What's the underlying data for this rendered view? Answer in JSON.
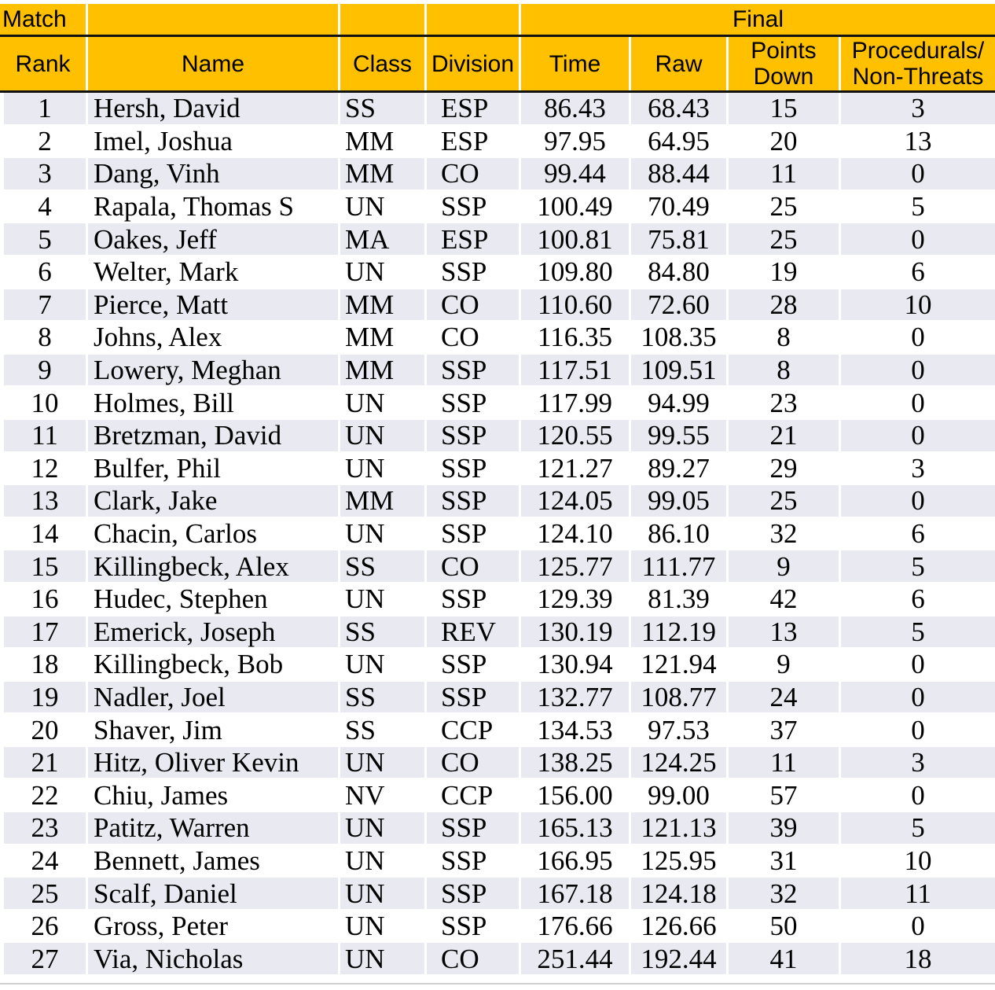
{
  "colors": {
    "header_bg": "#FFC000",
    "row_stripe": "#E9EAF1",
    "rule": "#111111"
  },
  "header": {
    "match_label": "Match",
    "final_label": "Final",
    "columns": {
      "rank": "Rank",
      "name": "Name",
      "class": "Class",
      "division": "Division",
      "time": "Time",
      "raw": "Raw",
      "points_down_line1": "Points",
      "points_down_line2": "Down",
      "procedurals_line1": "Procedurals/",
      "procedurals_line2": "Non-Threats"
    }
  },
  "column_keys": [
    "rank",
    "name",
    "class",
    "division",
    "time",
    "raw",
    "points-down",
    "procedurals-non-threats"
  ],
  "rows": [
    [
      "1",
      "Hersh, David",
      "SS",
      "ESP",
      "86.43",
      "68.43",
      "15",
      "3"
    ],
    [
      "2",
      "Imel, Joshua",
      "MM",
      "ESP",
      "97.95",
      "64.95",
      "20",
      "13"
    ],
    [
      "3",
      "Dang, Vinh",
      "MM",
      "CO",
      "99.44",
      "88.44",
      "11",
      "0"
    ],
    [
      "4",
      "Rapala, Thomas S",
      "UN",
      "SSP",
      "100.49",
      "70.49",
      "25",
      "5"
    ],
    [
      "5",
      "Oakes, Jeff",
      "MA",
      "ESP",
      "100.81",
      "75.81",
      "25",
      "0"
    ],
    [
      "6",
      "Welter, Mark",
      "UN",
      "SSP",
      "109.80",
      "84.80",
      "19",
      "6"
    ],
    [
      "7",
      "Pierce, Matt",
      "MM",
      "CO",
      "110.60",
      "72.60",
      "28",
      "10"
    ],
    [
      "8",
      "Johns, Alex",
      "MM",
      "CO",
      "116.35",
      "108.35",
      "8",
      "0"
    ],
    [
      "9",
      "Lowery, Meghan",
      "MM",
      "SSP",
      "117.51",
      "109.51",
      "8",
      "0"
    ],
    [
      "10",
      "Holmes, Bill",
      "UN",
      "SSP",
      "117.99",
      "94.99",
      "23",
      "0"
    ],
    [
      "11",
      "Bretzman, David",
      "UN",
      "SSP",
      "120.55",
      "99.55",
      "21",
      "0"
    ],
    [
      "12",
      "Bulfer, Phil",
      "UN",
      "SSP",
      "121.27",
      "89.27",
      "29",
      "3"
    ],
    [
      "13",
      "Clark, Jake",
      "MM",
      "SSP",
      "124.05",
      "99.05",
      "25",
      "0"
    ],
    [
      "14",
      "Chacin, Carlos",
      "UN",
      "SSP",
      "124.10",
      "86.10",
      "32",
      "6"
    ],
    [
      "15",
      "Killingbeck, Alex",
      "SS",
      "CO",
      "125.77",
      "111.77",
      "9",
      "5"
    ],
    [
      "16",
      "Hudec, Stephen",
      "UN",
      "SSP",
      "129.39",
      "81.39",
      "42",
      "6"
    ],
    [
      "17",
      "Emerick, Joseph",
      "SS",
      "REV",
      "130.19",
      "112.19",
      "13",
      "5"
    ],
    [
      "18",
      "Killingbeck, Bob",
      "UN",
      "SSP",
      "130.94",
      "121.94",
      "9",
      "0"
    ],
    [
      "19",
      "Nadler, Joel",
      "SS",
      "SSP",
      "132.77",
      "108.77",
      "24",
      "0"
    ],
    [
      "20",
      "Shaver, Jim",
      "SS",
      "CCP",
      "134.53",
      "97.53",
      "37",
      "0"
    ],
    [
      "21",
      "Hitz, Oliver Kevin",
      "UN",
      "CO",
      "138.25",
      "124.25",
      "11",
      "3"
    ],
    [
      "22",
      "Chiu, James",
      "NV",
      "CCP",
      "156.00",
      "99.00",
      "57",
      "0"
    ],
    [
      "23",
      "Patitz, Warren",
      "UN",
      "SSP",
      "165.13",
      "121.13",
      "39",
      "5"
    ],
    [
      "24",
      "Bennett, James",
      "UN",
      "SSP",
      "166.95",
      "125.95",
      "31",
      "10"
    ],
    [
      "25",
      "Scalf, Daniel",
      "UN",
      "SSP",
      "167.18",
      "124.18",
      "32",
      "11"
    ],
    [
      "26",
      "Gross, Peter",
      "UN",
      "SSP",
      "176.66",
      "126.66",
      "50",
      "0"
    ],
    [
      "27",
      "Via, Nicholas",
      "UN",
      "CO",
      "251.44",
      "192.44",
      "41",
      "18"
    ]
  ]
}
